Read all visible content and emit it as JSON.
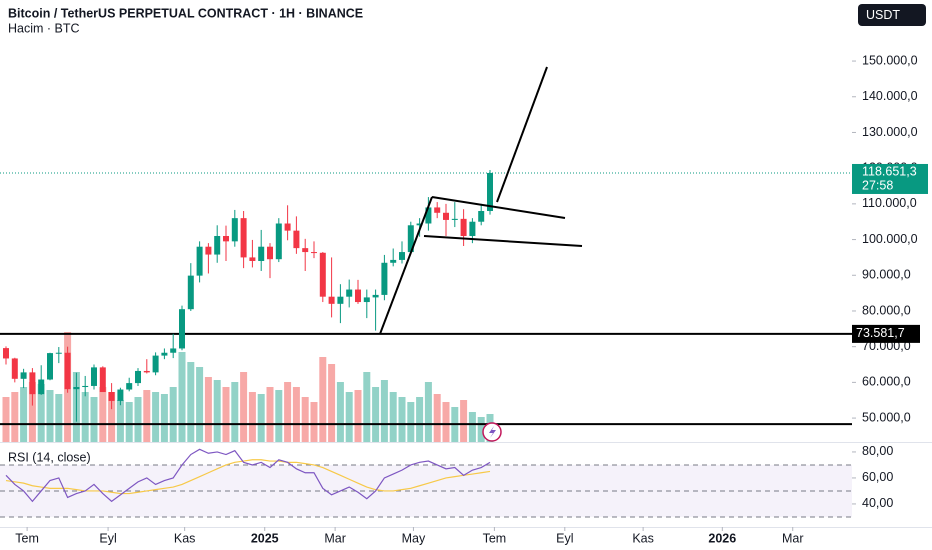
{
  "chart_data": {
    "type": "candlestick",
    "title": "Bitcoin / TetherUS PERPETUAL CONTRACT · 1H · BINANCE",
    "subtitle": "Hacim · BTC",
    "currency": "USDT",
    "up_color": "#089981",
    "down_color": "#f23645",
    "volume_up_color": "#92d2c7",
    "volume_down_color": "#f7a9a7",
    "open": [
      69600,
      66700,
      61000,
      62800,
      56700,
      60800,
      68200,
      68300,
      58100,
      58700,
      59000,
      64200,
      57300,
      54800,
      58000,
      59800,
      63200,
      62800,
      67500,
      68300,
      69500,
      80500,
      89900,
      98000,
      95800,
      101000,
      99500,
      106000,
      95000,
      94000,
      98000,
      94500,
      104500,
      102500,
      97600,
      96500,
      96300,
      84000,
      82000,
      84000,
      86000,
      82500,
      83800,
      84500,
      93500,
      94300,
      96500,
      104000,
      104500,
      109000,
      107500,
      105500,
      105800,
      101000,
      105000,
      108000
    ],
    "high": [
      70100,
      66900,
      63800,
      64000,
      64800,
      68300,
      69900,
      70000,
      62700,
      61800,
      65000,
      64500,
      59800,
      58500,
      61300,
      64000,
      66500,
      68400,
      69500,
      73600,
      81500,
      93400,
      99500,
      99000,
      104000,
      103900,
      108300,
      108000,
      99900,
      102700,
      99000,
      106000,
      109600,
      106500,
      100200,
      99500,
      96500,
      95000,
      87500,
      88800,
      88700,
      86000,
      86000,
      95700,
      97500,
      99500,
      105000,
      106000,
      111900,
      110500,
      110000,
      110500,
      108500,
      106000,
      110000,
      119500
    ],
    "low": [
      65000,
      60000,
      58400,
      53500,
      56500,
      60600,
      65400,
      57100,
      49000,
      56100,
      58000,
      57900,
      52500,
      53600,
      57500,
      59000,
      62500,
      62000,
      66500,
      66800,
      69000,
      80000,
      88000,
      90500,
      93500,
      94000,
      98000,
      92000,
      92200,
      91200,
      89200,
      93700,
      99800,
      96000,
      91200,
      94800,
      82500,
      78200,
      76600,
      81000,
      82000,
      78000,
      74500,
      83000,
      92500,
      93300,
      96000,
      100800,
      102500,
      106000,
      101000,
      103500,
      98200,
      99000,
      104000,
      107000
    ],
    "close": [
      66700,
      61000,
      62800,
      56700,
      60800,
      68200,
      68300,
      58100,
      58700,
      59000,
      64200,
      57300,
      54800,
      58000,
      59800,
      63200,
      62800,
      67500,
      68300,
      69500,
      80500,
      89900,
      98000,
      95800,
      101000,
      99500,
      106000,
      95000,
      94000,
      98000,
      94500,
      104500,
      102500,
      97600,
      96500,
      96300,
      84000,
      82000,
      84000,
      86000,
      82500,
      83800,
      84500,
      93500,
      94300,
      96500,
      104000,
      104500,
      109000,
      107500,
      105500,
      105800,
      101000,
      105000,
      108000,
      118651.3
    ],
    "volume": [
      45,
      50,
      55,
      60,
      58,
      52,
      48,
      110,
      70,
      50,
      45,
      55,
      50,
      42,
      40,
      45,
      52,
      50,
      48,
      55,
      90,
      80,
      75,
      65,
      62,
      55,
      60,
      70,
      50,
      48,
      55,
      52,
      60,
      55,
      45,
      40,
      85,
      78,
      60,
      50,
      52,
      70,
      55,
      62,
      50,
      45,
      40,
      45,
      60,
      48,
      40,
      35,
      42,
      30,
      25,
      28
    ],
    "ylim": [
      43300,
      167100
    ],
    "yticks": [
      {
        "value": 150000,
        "label": "150.000,0"
      },
      {
        "value": 140000,
        "label": "140.000,0"
      },
      {
        "value": 130000,
        "label": "130.000,0"
      },
      {
        "value": 120000,
        "label": "120.000,0"
      },
      {
        "value": 110000,
        "label": "110.000,0"
      },
      {
        "value": 100000,
        "label": "100.000,0"
      },
      {
        "value": 90000,
        "label": "90.000,0"
      },
      {
        "value": 80000,
        "label": "80.000,0"
      },
      {
        "value": 70000,
        "label": "70.000,0"
      },
      {
        "value": 60000,
        "label": "60.000,0"
      },
      {
        "value": 50000,
        "label": "50.000,0"
      }
    ],
    "xticks": [
      {
        "value": 2.4,
        "label": "Tem"
      },
      {
        "value": 11.6,
        "label": "Eyl"
      },
      {
        "value": 20.3,
        "label": "Kas"
      },
      {
        "value": 29.4,
        "label": "2025"
      },
      {
        "value": 37.4,
        "label": "Mar"
      },
      {
        "value": 46.3,
        "label": "May"
      },
      {
        "value": 55.5,
        "label": "Tem"
      },
      {
        "value": 63.5,
        "label": "Eyl"
      },
      {
        "value": 72.4,
        "label": "Kas"
      },
      {
        "value": 81.4,
        "label": "2026"
      },
      {
        "value": 89.4,
        "label": "Mar"
      }
    ],
    "last_price": {
      "value": 118651.3,
      "label": "118.651,3"
    },
    "countdown": "27:58",
    "levels": [
      {
        "value": 73581.7,
        "label": "73.581,7"
      },
      {
        "value": 48300
      }
    ],
    "rsi": {
      "title": "RSI (14, close)",
      "line_color": "#7e57c2",
      "ma_color": "#f7c948",
      "values": [
        62,
        55,
        50,
        42,
        50,
        58,
        60,
        45,
        48,
        50,
        55,
        48,
        42,
        47,
        52,
        57,
        60,
        55,
        58,
        60,
        70,
        78,
        82,
        79,
        80,
        78,
        81,
        72,
        70,
        72,
        68,
        74,
        72,
        67,
        64,
        64,
        52,
        47,
        50,
        53,
        49,
        44,
        50,
        60,
        63,
        66,
        70,
        72,
        73,
        70,
        67,
        68,
        62,
        66,
        68,
        72
      ],
      "ma": [
        58,
        57,
        56,
        54,
        53,
        52,
        52,
        52,
        51,
        50,
        50,
        50,
        49,
        48,
        48,
        49,
        50,
        51,
        52,
        53,
        55,
        58,
        61,
        64,
        67,
        70,
        72,
        73,
        74,
        74,
        73,
        73,
        72,
        72,
        71,
        70,
        68,
        65,
        62,
        59,
        56,
        53,
        51,
        50,
        50,
        51,
        52,
        54,
        56,
        58,
        60,
        61,
        62,
        63,
        64,
        65
      ],
      "ylim": [
        23.8,
        83.8
      ],
      "yticks": [
        {
          "value": 80,
          "label": "80,00"
        },
        {
          "value": 60,
          "label": "60,00"
        },
        {
          "value": 40,
          "label": "40,00"
        }
      ],
      "bands": [
        70,
        50,
        30
      ]
    }
  }
}
